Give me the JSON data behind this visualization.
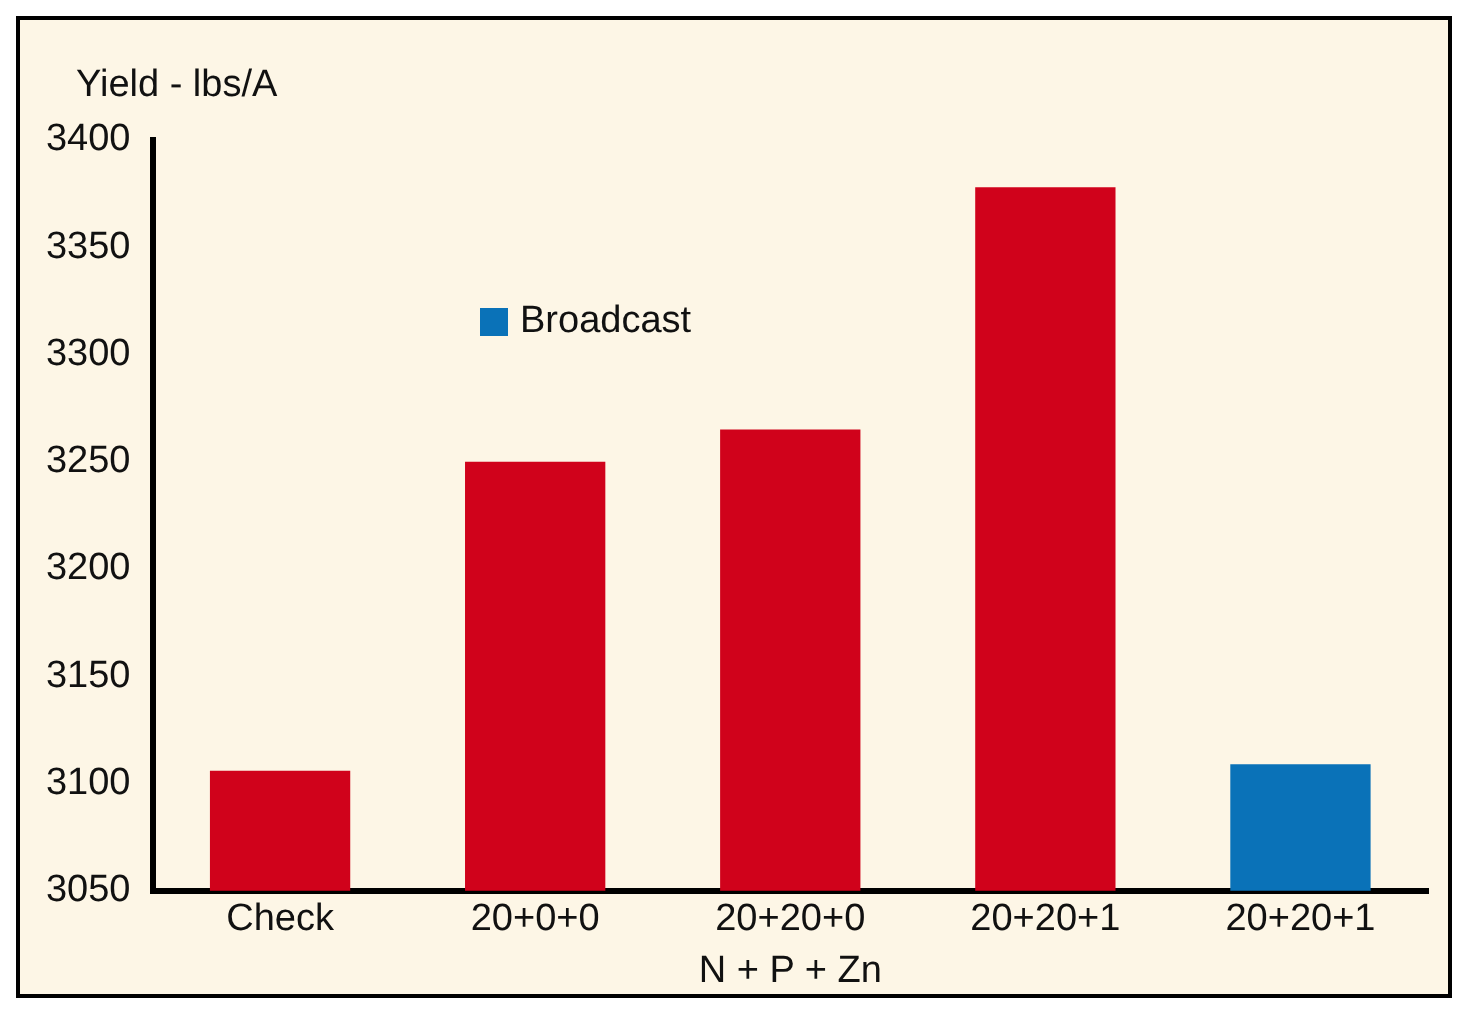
{
  "chart_data": {
    "type": "bar",
    "ylabel": "Yield - lbs/A",
    "xlabel": "N + P + Zn",
    "categories": [
      "Check",
      "20+0+0",
      "20+20+0",
      "20+20+1",
      "20+20+1"
    ],
    "series": [
      {
        "color": "#d0021b",
        "values": [
          3106,
          3250,
          3265,
          3378,
          null
        ]
      },
      {
        "name": "Broadcast",
        "color": "#0a72b8",
        "values": [
          null,
          null,
          null,
          null,
          3109
        ]
      }
    ],
    "ylim": [
      3050,
      3400
    ],
    "yticks": [
      3050,
      3100,
      3150,
      3200,
      3250,
      3300,
      3350,
      3400
    ],
    "grid": false,
    "legend": "top left"
  }
}
